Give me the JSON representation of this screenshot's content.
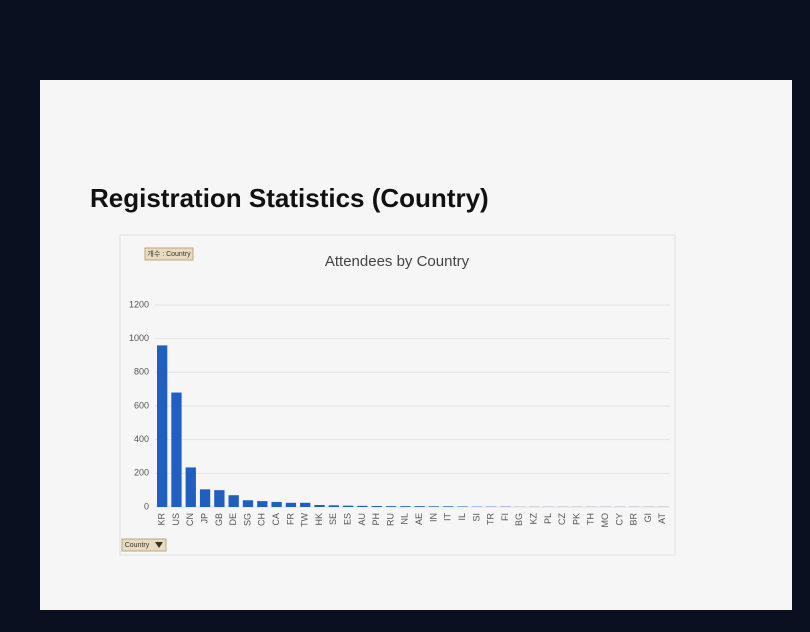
{
  "slide": {
    "title": "Registration Statistics (Country)"
  },
  "field_buttons": {
    "value_field": "개수 : Country",
    "axis_field": "Country"
  },
  "chart_data": {
    "type": "bar",
    "title": "Attendees by Country",
    "categories": [
      "KR",
      "US",
      "CN",
      "JP",
      "GB",
      "DE",
      "SG",
      "CH",
      "CA",
      "FR",
      "TW",
      "HK",
      "SE",
      "ES",
      "AU",
      "PH",
      "RU",
      "NL",
      "AE",
      "IN",
      "IT",
      "IL",
      "SI",
      "TR",
      "FI",
      "BG",
      "KZ",
      "PL",
      "CZ",
      "PK",
      "TH",
      "MO",
      "CY",
      "BR",
      "GI",
      "AT"
    ],
    "values": [
      960,
      680,
      235,
      105,
      100,
      70,
      40,
      35,
      30,
      25,
      25,
      12,
      10,
      8,
      7,
      6,
      5,
      5,
      5,
      4,
      4,
      3,
      2,
      2,
      2,
      1,
      1,
      1,
      1,
      1,
      1,
      1,
      1,
      1,
      1,
      1
    ],
    "color": "#1f5fbf",
    "ylim": [
      0,
      1200
    ],
    "yticks": [
      0,
      200,
      400,
      600,
      800,
      1000,
      1200
    ],
    "grid": true
  }
}
